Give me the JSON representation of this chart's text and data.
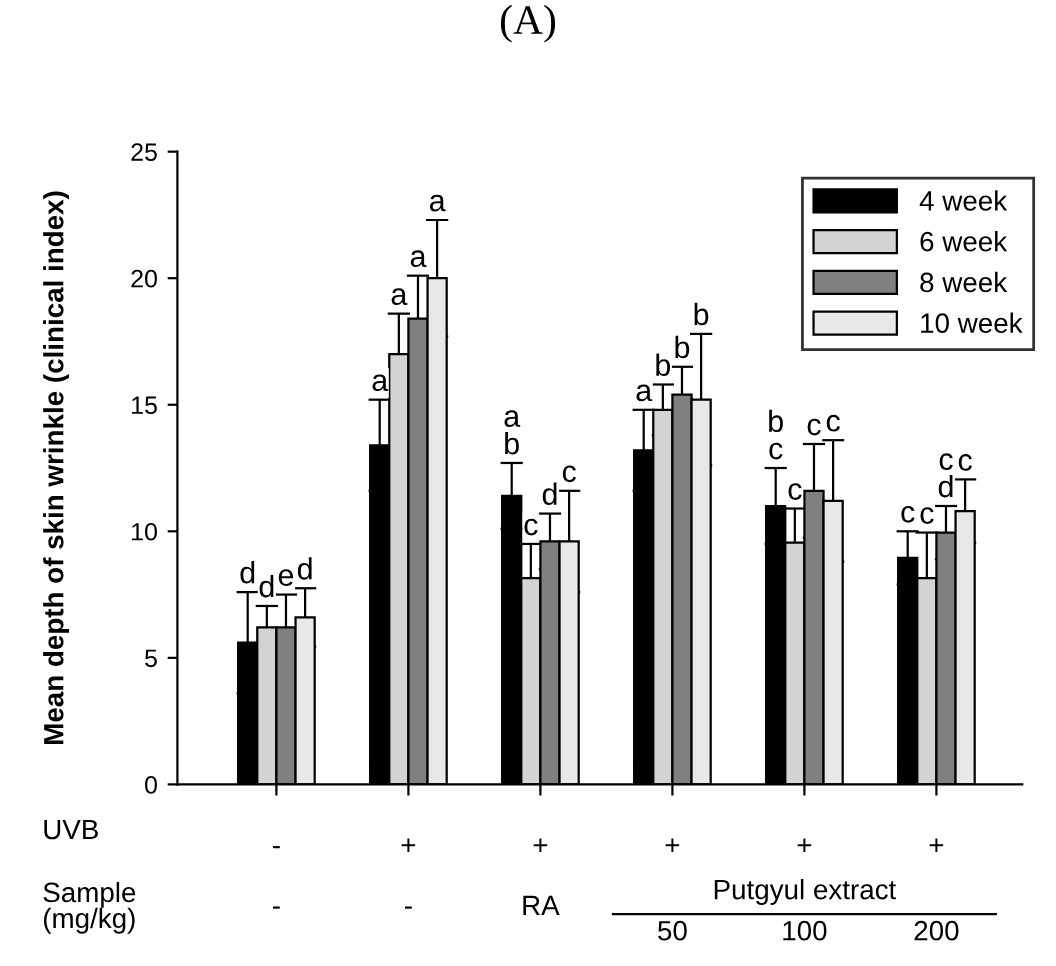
{
  "chart_data": {
    "type": "bar",
    "title": "(A)",
    "ylabel": "Mean depth of skin wrinkle (clinical index)",
    "categories": [
      "-",
      "+",
      "+",
      "+",
      "+",
      "+"
    ],
    "series": [
      {
        "name": "4 week",
        "color": "#000000",
        "values": [
          5.6,
          13.4,
          11.4,
          13.2,
          11.0,
          8.95
        ],
        "errors": [
          2.0,
          1.8,
          1.3,
          1.6,
          1.5,
          1.05
        ],
        "value_labels": [
          "d",
          "a",
          "a\nb",
          "a",
          "b\nc",
          "c"
        ]
      },
      {
        "name": "6 week",
        "color": "#d3d3d3",
        "values": [
          6.2,
          17.0,
          8.15,
          14.8,
          9.55,
          8.15
        ],
        "errors": [
          0.85,
          1.6,
          1.35,
          1.0,
          1.35,
          1.8
        ],
        "value_labels": [
          "d",
          "a",
          "c",
          "b",
          "c",
          "c"
        ]
      },
      {
        "name": "8 week",
        "color": "#808080",
        "values": [
          6.2,
          18.4,
          9.6,
          15.4,
          11.6,
          9.95
        ],
        "errors": [
          1.3,
          1.7,
          1.1,
          1.1,
          1.85,
          1.05
        ],
        "value_labels": [
          "e",
          "a",
          "d",
          "b",
          "c",
          "c\nd"
        ]
      },
      {
        "name": "10 week",
        "color": "#e8e8e8",
        "values": [
          6.6,
          20.0,
          9.6,
          15.2,
          11.2,
          10.8
        ],
        "errors": [
          1.15,
          2.3,
          2.0,
          2.6,
          2.4,
          1.25
        ],
        "value_labels": [
          "d",
          "a",
          "c",
          "b",
          "c",
          "c"
        ]
      }
    ],
    "ylim": [
      0,
      25
    ],
    "yticks": [
      0,
      5,
      10,
      15,
      20,
      25
    ],
    "grid": false,
    "legend": "top right",
    "annotations": [
      "UVB",
      "Sample\n(mg/kg)",
      "-",
      "-",
      "RA",
      "Putgyul extract",
      "50",
      "100",
      "200"
    ]
  }
}
